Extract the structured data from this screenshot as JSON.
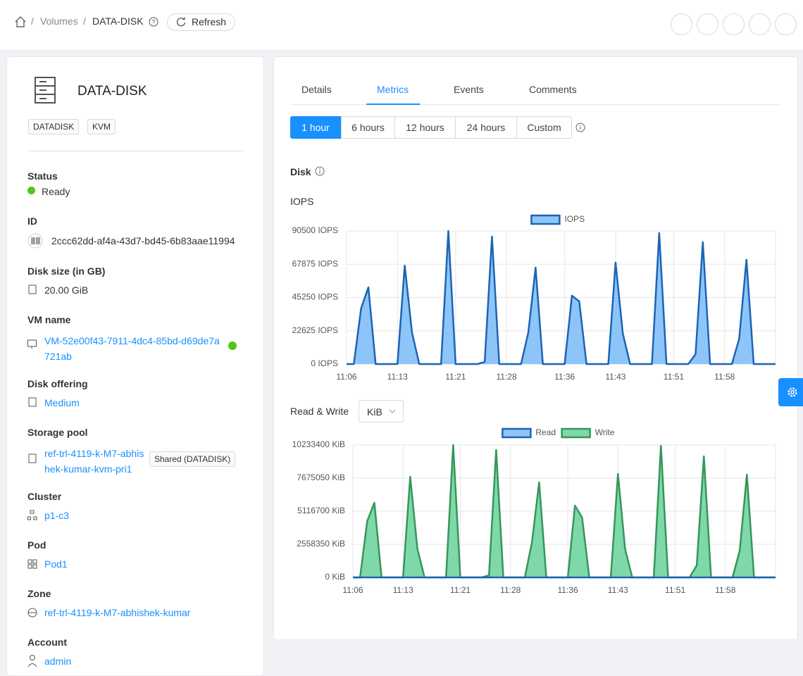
{
  "breadcrumb": [
    "Volumes",
    "DATA-DISK"
  ],
  "refresh": "Refresh",
  "volume": {
    "name": "DATA-DISK",
    "tags": [
      "DATADISK",
      "KVM"
    ]
  },
  "fields": [
    {
      "label": "Status",
      "value": "Ready"
    },
    {
      "label": "ID",
      "value": "2ccc62dd-af4a-43d7-bd45-6b83aae11994"
    },
    {
      "label": "Disk size (in GB)",
      "value": "20.00 GiB"
    },
    {
      "label": "VM name",
      "value": "VM-52e00f43-7911-4dc4-85bd-d69de7a721ab"
    },
    {
      "label": "Disk offering",
      "value": "Medium"
    },
    {
      "label": "Storage pool",
      "value": "ref-trl-4119-k-M7-abhishek-kumar-kvm-pri1",
      "badge": "Shared (DATADISK)"
    },
    {
      "label": "Cluster",
      "value": "p1-c3"
    },
    {
      "label": "Pod",
      "value": "Pod1"
    },
    {
      "label": "Zone",
      "value": "ref-trl-4119-k-M7-abhishek-kumar"
    },
    {
      "label": "Account",
      "value": "admin"
    }
  ],
  "tabs": [
    "Details",
    "Metrics",
    "Events",
    "Comments"
  ],
  "time_ranges": [
    "1 hour",
    "6 hours",
    "12 hours",
    "24 hours",
    "Custom"
  ],
  "section": "Disk",
  "unit_selector": "KiB",
  "chart_data": [
    {
      "type": "area",
      "title": "IOPS",
      "legend": "top",
      "grid": true,
      "categories": [
        "11:06",
        null,
        null,
        null,
        null,
        null,
        null,
        "11:13",
        null,
        null,
        null,
        null,
        null,
        null,
        null,
        "11:21",
        null,
        null,
        null,
        null,
        null,
        null,
        "11:28",
        null,
        null,
        null,
        null,
        null,
        null,
        null,
        "11:36",
        null,
        null,
        null,
        null,
        null,
        null,
        "11:43",
        null,
        null,
        null,
        null,
        null,
        null,
        null,
        "11:51",
        null,
        null,
        null,
        null,
        null,
        null,
        "11:58",
        null,
        null,
        null,
        null,
        null,
        null,
        null
      ],
      "series": [
        {
          "name": "IOPS",
          "color": "#1c64b6",
          "fill": "#8ec5f8",
          "values": [
            0,
            0,
            37800,
            52200,
            0,
            0,
            0,
            0,
            67000,
            21500,
            0,
            0,
            0,
            0,
            90500,
            0,
            0,
            0,
            0,
            1400,
            86700,
            0,
            0,
            0,
            0,
            21500,
            65600,
            0,
            0,
            0,
            0,
            46500,
            42600,
            0,
            0,
            0,
            0,
            69000,
            20600,
            0,
            0,
            0,
            0,
            89100,
            0,
            0,
            0,
            0,
            6700,
            82900,
            0,
            0,
            0,
            0,
            17200,
            70900,
            0,
            0,
            0,
            0
          ]
        }
      ],
      "ylim": [
        0,
        90500
      ],
      "yticks": [
        {
          "value": 0,
          "label": "0 IOPS"
        },
        {
          "value": 22625,
          "label": "22625 IOPS"
        },
        {
          "value": 45250,
          "label": "45250 IOPS"
        },
        {
          "value": 67875,
          "label": "67875 IOPS"
        },
        {
          "value": 90500,
          "label": "90500 IOPS"
        }
      ]
    },
    {
      "type": "area",
      "title": "Read & Write",
      "legend": "top",
      "grid": true,
      "categories": [
        "11:06",
        null,
        null,
        null,
        null,
        null,
        null,
        "11:13",
        null,
        null,
        null,
        null,
        null,
        null,
        null,
        "11:21",
        null,
        null,
        null,
        null,
        null,
        null,
        "11:28",
        null,
        null,
        null,
        null,
        null,
        null,
        null,
        "11:36",
        null,
        null,
        null,
        null,
        null,
        null,
        "11:43",
        null,
        null,
        null,
        null,
        null,
        null,
        null,
        "11:51",
        null,
        null,
        null,
        null,
        null,
        null,
        "11:58",
        null,
        null,
        null,
        null,
        null,
        null,
        null
      ],
      "series": [
        {
          "name": "Read",
          "color": "#1c64b6",
          "fill": "#8ec5f8",
          "values": [
            0,
            0,
            0,
            0,
            0,
            0,
            0,
            0,
            0,
            0,
            0,
            0,
            0,
            0,
            0,
            0,
            0,
            0,
            0,
            0,
            0,
            0,
            0,
            0,
            0,
            0,
            0,
            0,
            0,
            0,
            0,
            0,
            0,
            0,
            0,
            0,
            0,
            0,
            0,
            0,
            0,
            0,
            0,
            0,
            0,
            0,
            0,
            0,
            0,
            0,
            0,
            0,
            0,
            0,
            0,
            0,
            0,
            0,
            0,
            0
          ]
        },
        {
          "name": "Write",
          "color": "#36965a",
          "fill": "#7fd8a9",
          "values": [
            0,
            0,
            4350000,
            5770000,
            0,
            0,
            0,
            0,
            7784000,
            2232000,
            0,
            0,
            0,
            0,
            10233400,
            0,
            0,
            0,
            0,
            163000,
            9852000,
            0,
            0,
            0,
            0,
            2720000,
            7348000,
            0,
            0,
            0,
            0,
            5552000,
            4627000,
            0,
            0,
            0,
            0,
            8002000,
            2200000,
            0,
            0,
            0,
            0,
            10179000,
            0,
            0,
            0,
            0,
            925000,
            9362000,
            0,
            0,
            0,
            0,
            2068000,
            7947000,
            0,
            0,
            0,
            0
          ]
        }
      ],
      "ylim": [
        0,
        10233400
      ],
      "yticks": [
        {
          "value": 0,
          "label": "0 KiB"
        },
        {
          "value": 2558350,
          "label": "2558350 KiB"
        },
        {
          "value": 5116700,
          "label": "5116700 KiB"
        },
        {
          "value": 7675050,
          "label": "7675050 KiB"
        },
        {
          "value": 10233400,
          "label": "10233400 KiB"
        }
      ]
    }
  ]
}
